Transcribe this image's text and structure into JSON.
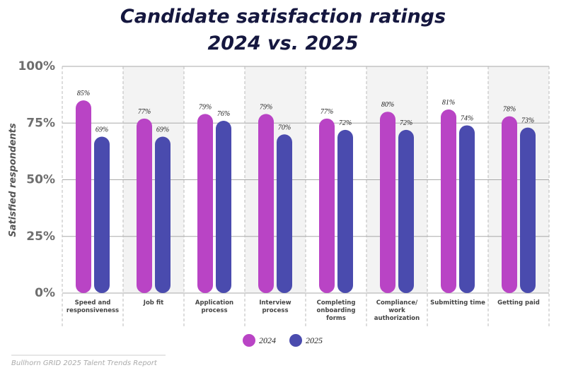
{
  "chart_data": {
    "type": "bar",
    "title": [
      "Candidate satisfaction ratings",
      "2024 vs. 2025"
    ],
    "y_label": "Satisfied respondents",
    "categories": [
      "Speed and responsiveness",
      "Job fit",
      "Application process",
      "Interview process",
      "Completing onboarding forms",
      "Compliance/ work authorization",
      "Submitting time",
      "Getting paid"
    ],
    "series": [
      {
        "name": "2024",
        "color": "#b944c5",
        "values": [
          85,
          77,
          79,
          79,
          77,
          80,
          81,
          78
        ],
        "value_labels": [
          "85%",
          "77%",
          "79%",
          "79%",
          "77%",
          "80%",
          "81%",
          "78%"
        ]
      },
      {
        "name": "2025",
        "color": "#4a4bae",
        "values": [
          69,
          69,
          76,
          70,
          72,
          72,
          74,
          73
        ],
        "value_labels": [
          "69%",
          "69%",
          "76%",
          "70%",
          "72%",
          "72%",
          "74%",
          "73%"
        ]
      }
    ],
    "ylim": [
      0,
      100
    ],
    "yticks": [
      {
        "value": 0,
        "label": "0%"
      },
      {
        "value": 25,
        "label": "25%"
      },
      {
        "value": 50,
        "label": "50%"
      },
      {
        "value": 75,
        "label": "75%"
      },
      {
        "value": 100,
        "label": "100%"
      }
    ],
    "grid": true,
    "legend": "bottom",
    "source": "Bullhorn GRID 2025 Talent Trends Report"
  }
}
